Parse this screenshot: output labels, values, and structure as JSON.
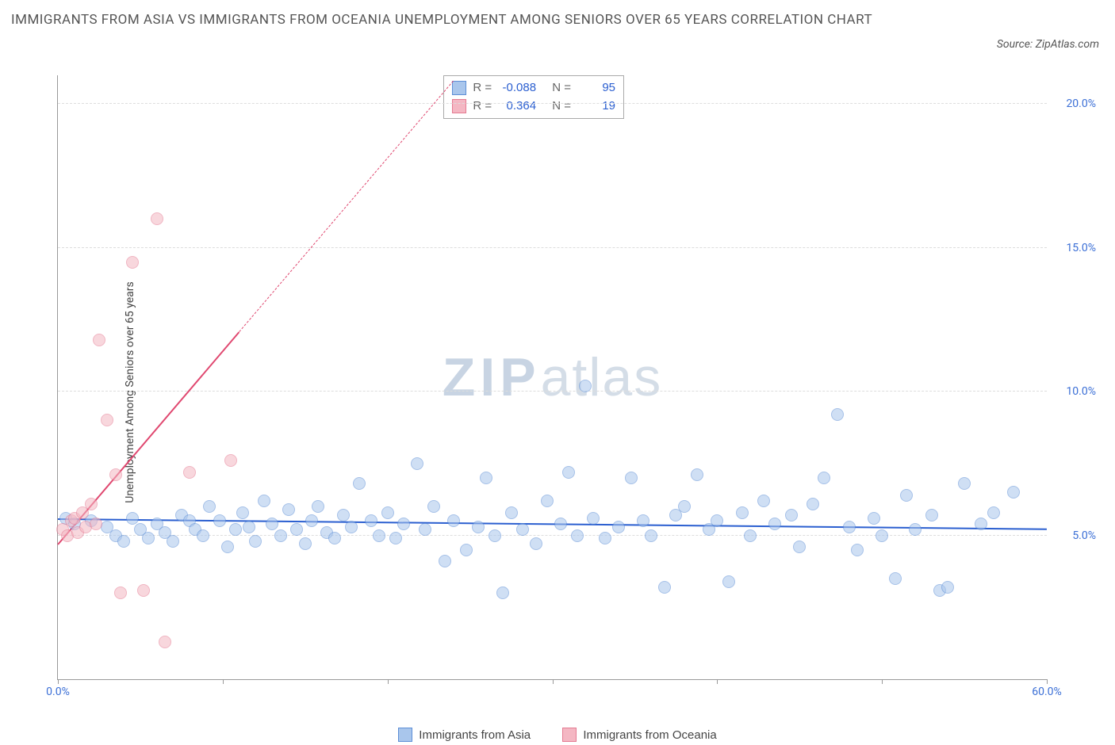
{
  "title": "IMMIGRANTS FROM ASIA VS IMMIGRANTS FROM OCEANIA UNEMPLOYMENT AMONG SENIORS OVER 65 YEARS CORRELATION CHART",
  "source_label": "Source: ZipAtlas.com",
  "watermark": {
    "bold": "ZIP",
    "light": "atlas"
  },
  "ylabel": "Unemployment Among Seniors over 65 years",
  "chart": {
    "type": "scatter",
    "background_color": "#ffffff",
    "xlim": [
      0,
      60
    ],
    "ylim": [
      0,
      21
    ],
    "x_ticks": [
      0,
      10,
      20,
      30,
      40,
      50,
      60
    ],
    "x_tick_labels": [
      "0.0%",
      "",
      "",
      "",
      "",
      "",
      "60.0%"
    ],
    "y_ticks": [
      5,
      10,
      15,
      20
    ],
    "y_tick_labels": [
      "5.0%",
      "10.0%",
      "15.0%",
      "20.0%"
    ],
    "grid_color": "#dddddd",
    "axis_color": "#999999",
    "point_radius": 8,
    "point_border_width": 1,
    "series": [
      {
        "name": "Immigrants from Asia",
        "label": "Immigrants from Asia",
        "fill_color": "#a9c6ec",
        "fill_opacity": 0.55,
        "border_color": "#5e8fd6",
        "trend": {
          "color": "#2b5fd0",
          "width": 2,
          "y_at_x0": 5.6,
          "y_at_x60": 5.25,
          "x_start": 0,
          "x_end": 60,
          "dashed_from": null
        },
        "R": "-0.088",
        "N": "95",
        "points": [
          [
            0.5,
            5.6
          ],
          [
            1,
            5.4
          ],
          [
            2,
            5.5
          ],
          [
            3,
            5.3
          ],
          [
            3.5,
            5.0
          ],
          [
            4,
            4.8
          ],
          [
            4.5,
            5.6
          ],
          [
            5,
            5.2
          ],
          [
            5.5,
            4.9
          ],
          [
            6,
            5.4
          ],
          [
            6.5,
            5.1
          ],
          [
            7,
            4.8
          ],
          [
            7.5,
            5.7
          ],
          [
            8,
            5.5
          ],
          [
            8.3,
            5.2
          ],
          [
            8.8,
            5.0
          ],
          [
            9.2,
            6.0
          ],
          [
            9.8,
            5.5
          ],
          [
            10.3,
            4.6
          ],
          [
            10.8,
            5.2
          ],
          [
            11.2,
            5.8
          ],
          [
            11.6,
            5.3
          ],
          [
            12,
            4.8
          ],
          [
            12.5,
            6.2
          ],
          [
            13,
            5.4
          ],
          [
            13.5,
            5.0
          ],
          [
            14,
            5.9
          ],
          [
            14.5,
            5.2
          ],
          [
            15,
            4.7
          ],
          [
            15.4,
            5.5
          ],
          [
            15.8,
            6.0
          ],
          [
            16.3,
            5.1
          ],
          [
            16.8,
            4.9
          ],
          [
            17.3,
            5.7
          ],
          [
            17.8,
            5.3
          ],
          [
            18.3,
            6.8
          ],
          [
            19,
            5.5
          ],
          [
            19.5,
            5.0
          ],
          [
            20,
            5.8
          ],
          [
            20.5,
            4.9
          ],
          [
            21,
            5.4
          ],
          [
            21.8,
            7.5
          ],
          [
            22.3,
            5.2
          ],
          [
            22.8,
            6.0
          ],
          [
            23.5,
            4.1
          ],
          [
            24,
            5.5
          ],
          [
            24.8,
            4.5
          ],
          [
            25.5,
            5.3
          ],
          [
            26,
            7.0
          ],
          [
            26.5,
            5.0
          ],
          [
            27,
            3.0
          ],
          [
            27.5,
            5.8
          ],
          [
            28.2,
            5.2
          ],
          [
            29,
            4.7
          ],
          [
            29.7,
            6.2
          ],
          [
            30.5,
            5.4
          ],
          [
            31,
            7.2
          ],
          [
            31.5,
            5.0
          ],
          [
            32,
            10.2
          ],
          [
            32.5,
            5.6
          ],
          [
            33.2,
            4.9
          ],
          [
            34,
            5.3
          ],
          [
            34.8,
            7.0
          ],
          [
            35.5,
            5.5
          ],
          [
            36,
            5.0
          ],
          [
            36.8,
            3.2
          ],
          [
            37.5,
            5.7
          ],
          [
            38,
            6.0
          ],
          [
            38.8,
            7.1
          ],
          [
            39.5,
            5.2
          ],
          [
            40,
            5.5
          ],
          [
            40.7,
            3.4
          ],
          [
            41.5,
            5.8
          ],
          [
            42,
            5.0
          ],
          [
            42.8,
            6.2
          ],
          [
            43.5,
            5.4
          ],
          [
            44.5,
            5.7
          ],
          [
            45,
            4.6
          ],
          [
            45.8,
            6.1
          ],
          [
            46.5,
            7.0
          ],
          [
            47.3,
            9.2
          ],
          [
            48,
            5.3
          ],
          [
            48.5,
            4.5
          ],
          [
            49.5,
            5.6
          ],
          [
            50,
            5.0
          ],
          [
            50.8,
            3.5
          ],
          [
            51.5,
            6.4
          ],
          [
            52,
            5.2
          ],
          [
            53,
            5.7
          ],
          [
            53.5,
            3.1
          ],
          [
            54,
            3.2
          ],
          [
            55,
            6.8
          ],
          [
            56,
            5.4
          ],
          [
            56.8,
            5.8
          ],
          [
            58,
            6.5
          ]
        ]
      },
      {
        "name": "Immigrants from Oceania",
        "label": "Immigrants from Oceania",
        "fill_color": "#f4b7c3",
        "fill_opacity": 0.55,
        "border_color": "#e57a92",
        "trend": {
          "color": "#e04870",
          "width": 2,
          "y_at_x0": 4.7,
          "y_at_x60": 45,
          "x_start": 0,
          "x_end": 24,
          "dashed_from": 11
        },
        "R": "0.364",
        "N": "19",
        "points": [
          [
            0.3,
            5.2
          ],
          [
            0.6,
            5.0
          ],
          [
            0.8,
            5.5
          ],
          [
            1.0,
            5.6
          ],
          [
            1.2,
            5.1
          ],
          [
            1.5,
            5.8
          ],
          [
            1.7,
            5.3
          ],
          [
            2.0,
            6.1
          ],
          [
            2.3,
            5.4
          ],
          [
            2.5,
            11.8
          ],
          [
            3.0,
            9.0
          ],
          [
            3.5,
            7.1
          ],
          [
            3.8,
            3.0
          ],
          [
            4.5,
            14.5
          ],
          [
            5.2,
            3.1
          ],
          [
            6.0,
            16.0
          ],
          [
            6.5,
            1.3
          ],
          [
            8.0,
            7.2
          ],
          [
            10.5,
            7.6
          ]
        ]
      }
    ]
  },
  "legend_stats": {
    "r_label": "R =",
    "n_label": "N ="
  },
  "colors": {
    "tick_text": "#3b6fd6",
    "title_text": "#555555"
  }
}
